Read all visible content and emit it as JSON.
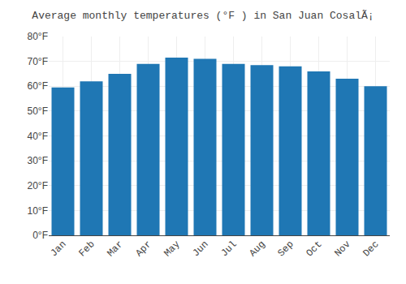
{
  "chart_data": {
    "type": "bar",
    "title": "Average monthly temperatures (°F ) in San Juan CosalÃ¡",
    "categories": [
      "Jan",
      "Feb",
      "Mar",
      "Apr",
      "May",
      "Jun",
      "Jul",
      "Aug",
      "Sep",
      "Oct",
      "Nov",
      "Dec"
    ],
    "values": [
      59.5,
      62,
      65,
      69,
      71.5,
      71,
      69,
      68.5,
      68,
      66,
      63,
      60
    ],
    "ylim": [
      0,
      80
    ],
    "yticks": [
      {
        "value": 0,
        "label": "0°F"
      },
      {
        "value": 10,
        "label": "10°F"
      },
      {
        "value": 20,
        "label": "20°F"
      },
      {
        "value": 30,
        "label": "30°F"
      },
      {
        "value": 40,
        "label": "40°F"
      },
      {
        "value": 50,
        "label": "50°F"
      },
      {
        "value": 60,
        "label": "60°F"
      },
      {
        "value": 70,
        "label": "70°F"
      },
      {
        "value": 80,
        "label": "80°F"
      }
    ],
    "grid": true
  }
}
